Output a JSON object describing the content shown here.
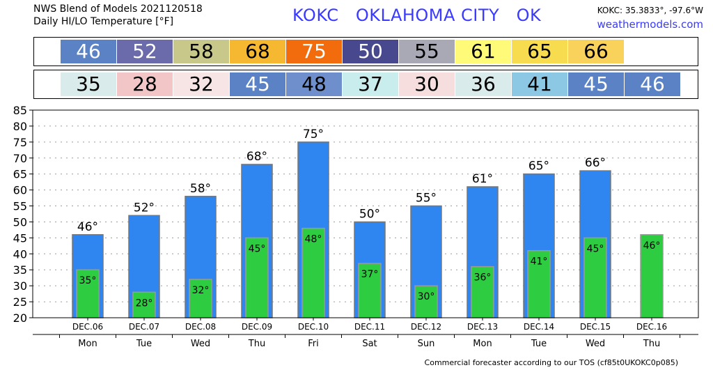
{
  "header": {
    "line1": "NWS Blend of Models 2021120518",
    "line2": "Daily HI/LO Temperature [°F]",
    "station": "KOKC   OKLAHOMA CITY   OK",
    "coords": "KOKC: 35.3833°, -97.6°W",
    "site": "weathermodels.com"
  },
  "footer": "Commercial forecaster according to our TOS (cf85t0UKOKC0p085)",
  "colors": {
    "high_bar": "#2f86f0",
    "low_bar": "#2ecc40",
    "hi_cells": [
      "#5b82c4",
      "#6b6bab",
      "#c8c88a",
      "#f5b830",
      "#f26b0d",
      "#48488f",
      "#a9a9b6",
      "#fffa78",
      "#f7dc50",
      "#f8d25a"
    ],
    "lo_cells": [
      "#d9eceb",
      "#f2c6c6",
      "#f7e4e4",
      "#5b82c4",
      "#6e8fcc",
      "#c9ecec",
      "#f6dede",
      "#d9eceb",
      "#8cc7e3",
      "#5b82c4",
      "#5b82c4"
    ]
  },
  "chart_data": {
    "type": "bar",
    "categories": [
      "DEC.06",
      "DEC.07",
      "DEC.08",
      "DEC.09",
      "DEC.10",
      "DEC.11",
      "DEC.12",
      "DEC.13",
      "DEC.14",
      "DEC.15",
      "DEC.16"
    ],
    "days": [
      "Mon",
      "Tue",
      "Wed",
      "Thu",
      "Fri",
      "Sat",
      "Sun",
      "Mon",
      "Tue",
      "Wed",
      "Thu"
    ],
    "series": [
      {
        "values": [
          46,
          52,
          58,
          68,
          75,
          50,
          55,
          61,
          65,
          66,
          null
        ]
      },
      {
        "values": [
          35,
          28,
          32,
          45,
          48,
          37,
          30,
          36,
          41,
          45,
          46
        ]
      }
    ],
    "ylim": [
      20,
      85
    ],
    "yticks": [
      20,
      25,
      30,
      35,
      40,
      45,
      50,
      55,
      60,
      65,
      70,
      75,
      80,
      85
    ],
    "grid": true
  }
}
